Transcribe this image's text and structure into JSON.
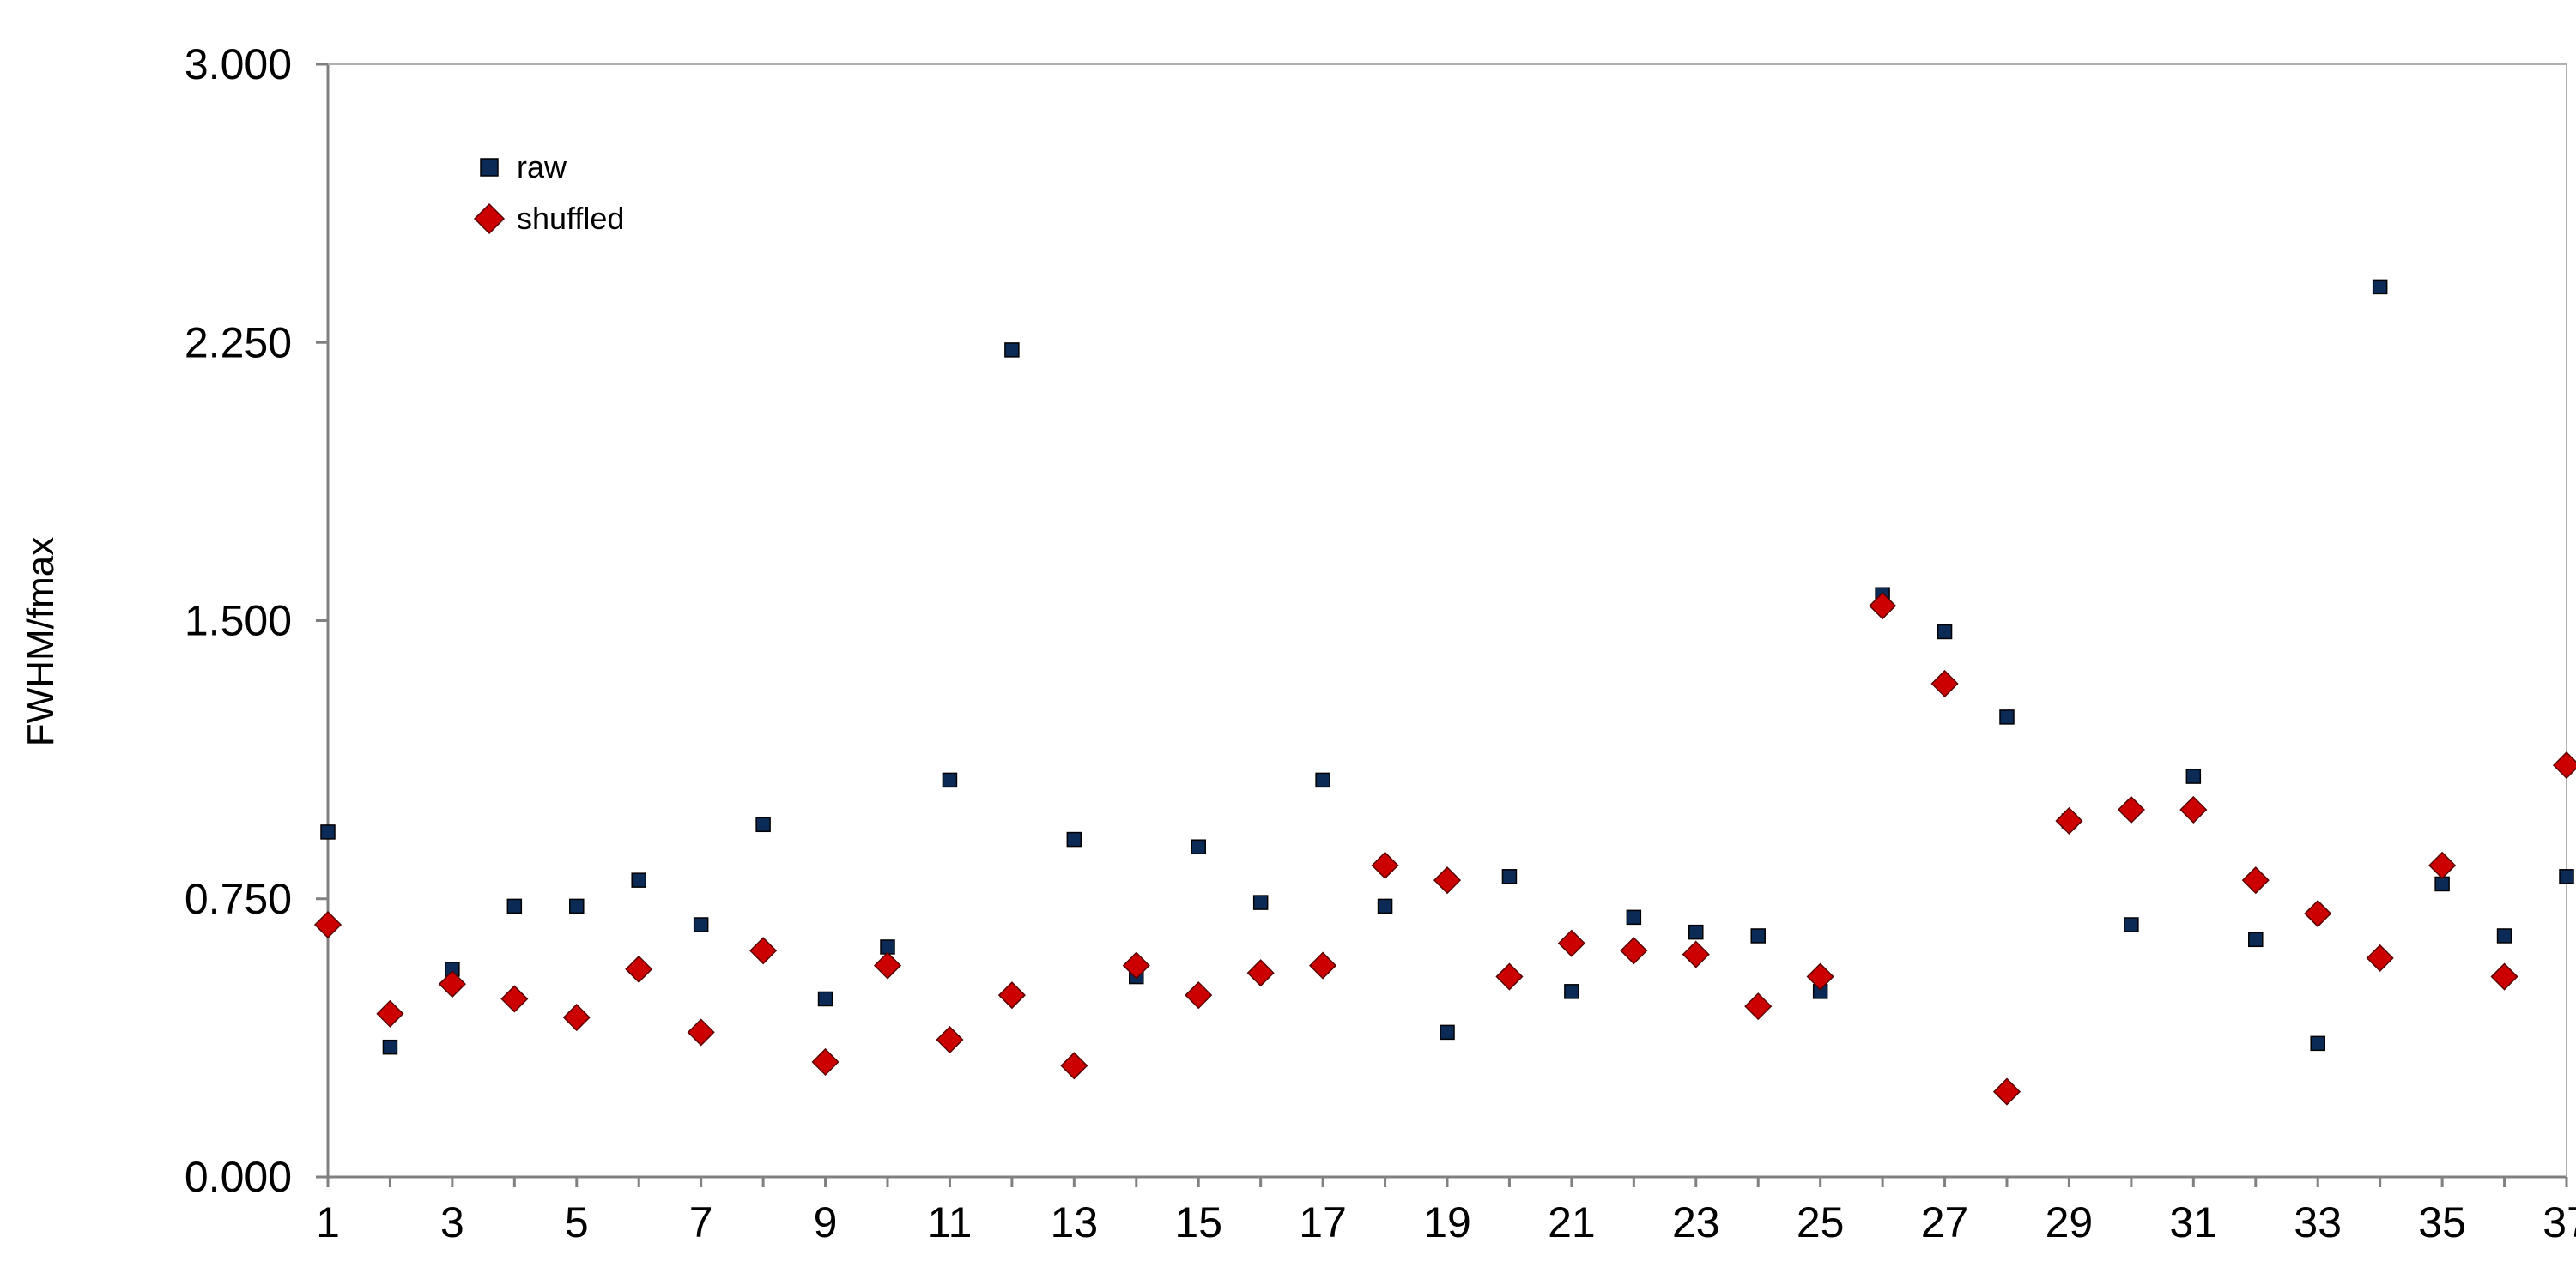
{
  "chart_data": {
    "type": "scatter",
    "title": "",
    "xlabel": "",
    "ylabel": "FWHM/fmax",
    "xlim": [
      1,
      37
    ],
    "ylim": [
      0,
      3
    ],
    "y_ticks": [
      "0.000",
      "0.750",
      "1.500",
      "2.250",
      "3.000"
    ],
    "x_ticks": [
      "1",
      "3",
      "5",
      "7",
      "9",
      "11",
      "13",
      "15",
      "17",
      "19",
      "21",
      "23",
      "25",
      "27",
      "29",
      "31",
      "33",
      "35",
      "37"
    ],
    "grid": false,
    "legend_position": "top-left",
    "x": [
      1,
      2,
      3,
      4,
      5,
      6,
      7,
      8,
      9,
      10,
      11,
      12,
      13,
      14,
      15,
      16,
      17,
      18,
      19,
      20,
      21,
      22,
      23,
      24,
      25,
      26,
      27,
      28,
      29,
      30,
      31,
      32,
      33,
      34,
      35,
      36,
      37
    ],
    "series": [
      {
        "name": "raw",
        "marker": "square",
        "color": "#0b2a56",
        "values": [
          0.93,
          0.35,
          0.56,
          0.73,
          0.73,
          0.8,
          0.68,
          0.95,
          0.48,
          0.62,
          1.07,
          2.23,
          0.91,
          0.54,
          0.89,
          0.74,
          1.07,
          0.73,
          0.39,
          0.81,
          0.5,
          0.7,
          0.66,
          0.65,
          0.5,
          1.57,
          1.47,
          1.24,
          0.96,
          0.68,
          1.08,
          0.64,
          0.36,
          2.4,
          0.79,
          0.65,
          0.81
        ]
      },
      {
        "name": "shuffled",
        "marker": "diamond",
        "color": "#cc0000",
        "values": [
          0.68,
          0.44,
          0.52,
          0.48,
          0.43,
          0.56,
          0.39,
          0.61,
          0.31,
          0.57,
          0.37,
          0.49,
          0.3,
          0.57,
          0.49,
          0.55,
          0.57,
          0.84,
          0.8,
          0.54,
          0.63,
          0.61,
          0.6,
          0.46,
          0.54,
          1.54,
          1.33,
          0.23,
          0.96,
          0.99,
          0.99,
          0.8,
          0.71,
          0.59,
          0.84,
          0.54,
          1.11
        ]
      }
    ]
  }
}
